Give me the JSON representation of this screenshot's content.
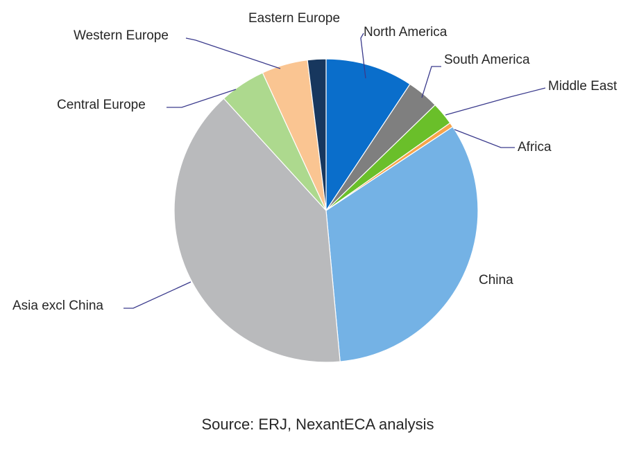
{
  "chart_data": {
    "type": "pie",
    "slices": [
      {
        "label": "North America",
        "value": 9.5,
        "color": "#0a6ecb"
      },
      {
        "label": "South America",
        "value": 3.5,
        "color": "#7f7f7f"
      },
      {
        "label": "Middle East",
        "value": 2.5,
        "color": "#6abf2a"
      },
      {
        "label": "Africa",
        "value": 0.5,
        "color": "#f7a44a"
      },
      {
        "label": "China",
        "value": 33.5,
        "color": "#74b2e5"
      },
      {
        "label": "Asia excl China",
        "value": 40.5,
        "color": "#b9babc"
      },
      {
        "label": "Central Europe",
        "value": 5.0,
        "color": "#add98e"
      },
      {
        "label": "Western Europe",
        "value": 5.0,
        "color": "#fac592"
      },
      {
        "label": "Eastern Europe",
        "value": 2.0,
        "color": "#17375e"
      }
    ],
    "start_position": "12 o'clock, clockwise",
    "legend": "none (direct labels with leader lines)"
  },
  "source_note": "Source: ERJ, NexantECA analysis"
}
